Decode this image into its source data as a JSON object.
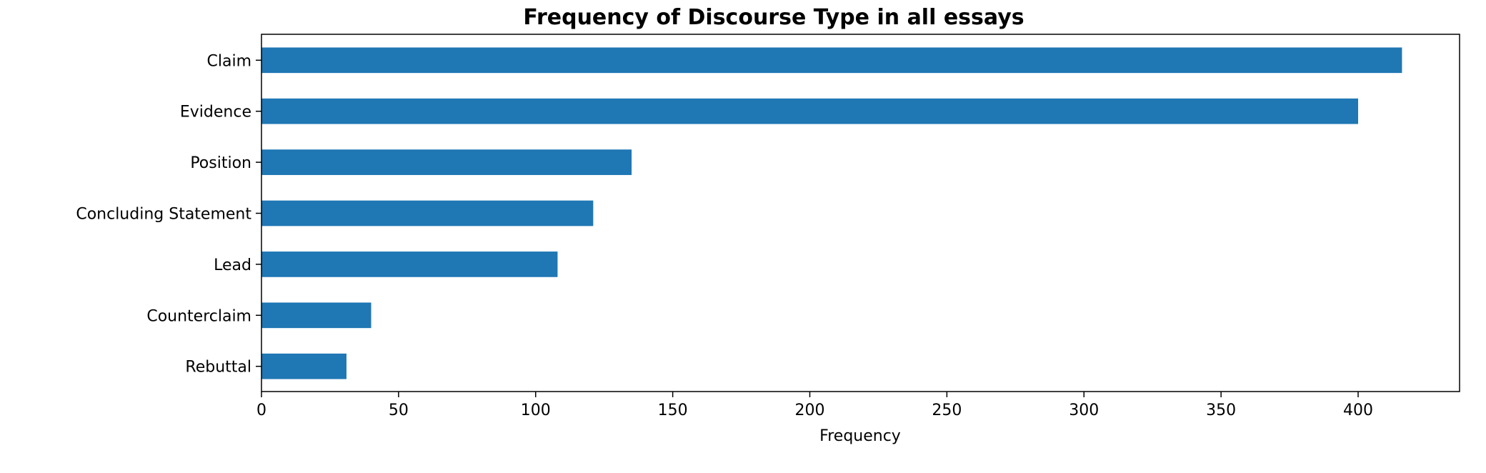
{
  "chart_data": {
    "type": "bar",
    "orientation": "horizontal",
    "title": "Frequency of Discourse Type in all essays",
    "xlabel": "Frequency",
    "ylabel": "",
    "categories": [
      "Claim",
      "Evidence",
      "Position",
      "Concluding Statement",
      "Lead",
      "Counterclaim",
      "Rebuttal"
    ],
    "values": [
      416,
      400,
      135,
      121,
      108,
      40,
      31
    ],
    "xlim": [
      0,
      437
    ],
    "xticks": [
      "0",
      "50",
      "100",
      "150",
      "200",
      "250",
      "300",
      "350",
      "400"
    ],
    "bar_color": "#1f77b4",
    "grid": false,
    "legend": "none"
  }
}
